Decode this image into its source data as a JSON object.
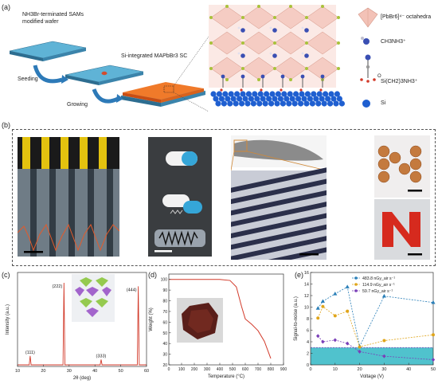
{
  "panel_a": {
    "label": "(a)",
    "wafer_label": "NH3Br-terminated SAMs modified wafer",
    "seeding": "Seeding",
    "growing": "Growing",
    "crystal_label": "Si-integrated MAPbBr3 SC",
    "legend": [
      {
        "text": "[PbBr6]⁴⁻ octahedra",
        "color": "#e8a89a"
      },
      {
        "text": "CH3NH3⁺",
        "color": "#3a4fb3"
      },
      {
        "text": "Si(CH2)3NH3⁺",
        "color": "#9a9a9a"
      },
      {
        "text": "Si",
        "color": "#1f5fd0"
      }
    ],
    "chem_o": "O"
  },
  "panel_b": {
    "label": "(b)"
  },
  "panel_c": {
    "label": "(c)"
  },
  "panel_d": {
    "label": "(d)"
  },
  "panel_e": {
    "label": "(e)"
  },
  "chart_data": [
    {
      "type": "line",
      "panel": "c",
      "xlabel": "2θ (deg)",
      "ylabel": "Intensity (a.u.)",
      "xlim": [
        10,
        60
      ],
      "x_ticks": [
        10,
        20,
        30,
        40,
        50,
        60
      ],
      "peaks": [
        {
          "x": 14.9,
          "height": 0.1,
          "label": "(111)"
        },
        {
          "x": 28.0,
          "height": 0.92,
          "label": "(222)"
        },
        {
          "x": 42.4,
          "height": 0.06,
          "label": "(333)"
        },
        {
          "x": 56.8,
          "height": 0.88,
          "label": "(444)"
        }
      ]
    },
    {
      "type": "line",
      "panel": "d",
      "xlabel": "Temperature (°C)",
      "ylabel": "Weight (%)",
      "xlim": [
        0,
        900
      ],
      "ylim": [
        20,
        105
      ],
      "x_ticks": [
        0,
        100,
        200,
        300,
        400,
        500,
        600,
        700,
        800,
        900
      ],
      "y_ticks": [
        20,
        30,
        40,
        50,
        60,
        70,
        80,
        90,
        100
      ],
      "x": [
        0,
        100,
        200,
        300,
        400,
        480,
        530,
        570,
        600,
        650,
        700,
        750,
        800
      ],
      "y": [
        100,
        100,
        100,
        100,
        100,
        99,
        93,
        75,
        63,
        58,
        52,
        42,
        26
      ]
    },
    {
      "type": "line",
      "panel": "e",
      "xlabel": "Voltage (V)",
      "ylabel": "Signal-to-noise (a.u.)",
      "xlim": [
        0,
        50
      ],
      "ylim": [
        0,
        16
      ],
      "x_ticks": [
        0,
        10,
        20,
        30,
        40,
        50
      ],
      "y_ticks": [
        0,
        2,
        4,
        6,
        8,
        10,
        12,
        14,
        16
      ],
      "band": [
        0,
        3
      ],
      "series": [
        {
          "name": "483.8 nGy_air s⁻¹",
          "color": "#2a7fb8",
          "marker": "triangle",
          "x": [
            3,
            5,
            10,
            15,
            20,
            30,
            50
          ],
          "y": [
            9.8,
            11.0,
            12.3,
            13.5,
            3.2,
            11.9,
            10.8
          ]
        },
        {
          "name": "114.9 nGy_air s⁻¹",
          "color": "#e0a51a",
          "marker": "circle",
          "x": [
            3,
            5,
            10,
            15,
            20,
            30,
            50
          ],
          "y": [
            8.1,
            10.1,
            8.5,
            9.3,
            3.1,
            4.2,
            5.2
          ]
        },
        {
          "name": "59.7 nGy_air s⁻¹",
          "color": "#7a3fb8",
          "marker": "diamond",
          "x": [
            3,
            5,
            10,
            15,
            20,
            30,
            50
          ],
          "y": [
            5.0,
            4.0,
            4.3,
            3.7,
            2.3,
            1.5,
            0.9
          ]
        }
      ]
    }
  ],
  "colors": {
    "wafer_top": "#5fb3d6",
    "wafer_side": "#2d6d90",
    "crystal": "#f07a2a",
    "si_sphere": "#1f5fd0",
    "teal_band": "#31b7c4"
  }
}
